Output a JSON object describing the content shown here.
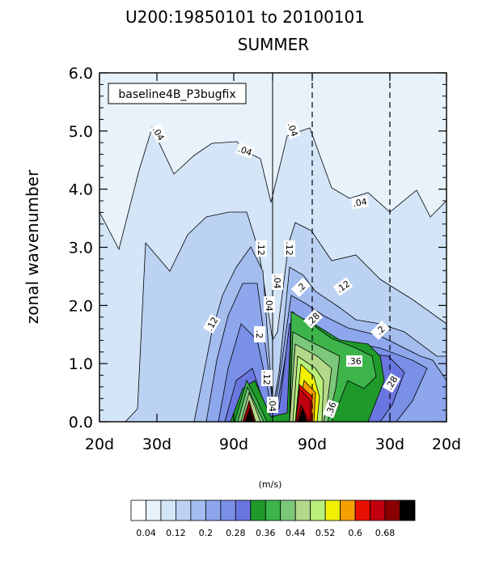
{
  "chart_data": {
    "type": "heatmap",
    "title": "U200:19850101 to 20100101",
    "subtitle": "SUMMER",
    "case_label": "baseline4B_P3bugfix",
    "ylabel": "zonal wavenumber",
    "ylim": [
      0,
      6
    ],
    "yticks": [
      "0.0",
      "1.0",
      "2.0",
      "3.0",
      "4.0",
      "5.0",
      "6.0"
    ],
    "xticks": [
      "20d",
      "30d",
      "90d",
      "",
      "90d",
      "30d",
      "20d"
    ],
    "units": "(m/s)",
    "colorbar": {
      "levels": [
        "0.04",
        "0.12",
        "0.2",
        "0.28",
        "0.36",
        "0.44",
        "0.52",
        "0.6",
        "0.68"
      ],
      "colors": [
        "#ffffff",
        "#e8f2fb",
        "#d4e5f7",
        "#bcd2f2",
        "#a4bdef",
        "#8da6ec",
        "#7a8fe6",
        "#6a76df",
        "#1f9a2a",
        "#3cb44a",
        "#7cc87a",
        "#b3d88a",
        "#b8f07a",
        "#f0f000",
        "#f5a000",
        "#e81000",
        "#c00010",
        "#8a0000",
        "#000000"
      ]
    },
    "contour_labels": [
      ".04",
      ".04",
      ".04",
      ".04",
      ".12",
      ".12",
      ".12",
      ".12",
      ".2",
      ".2",
      ".2",
      ".04",
      ".04",
      ".12",
      ".04",
      ".28",
      ".36",
      ".28",
      ".36"
    ]
  }
}
